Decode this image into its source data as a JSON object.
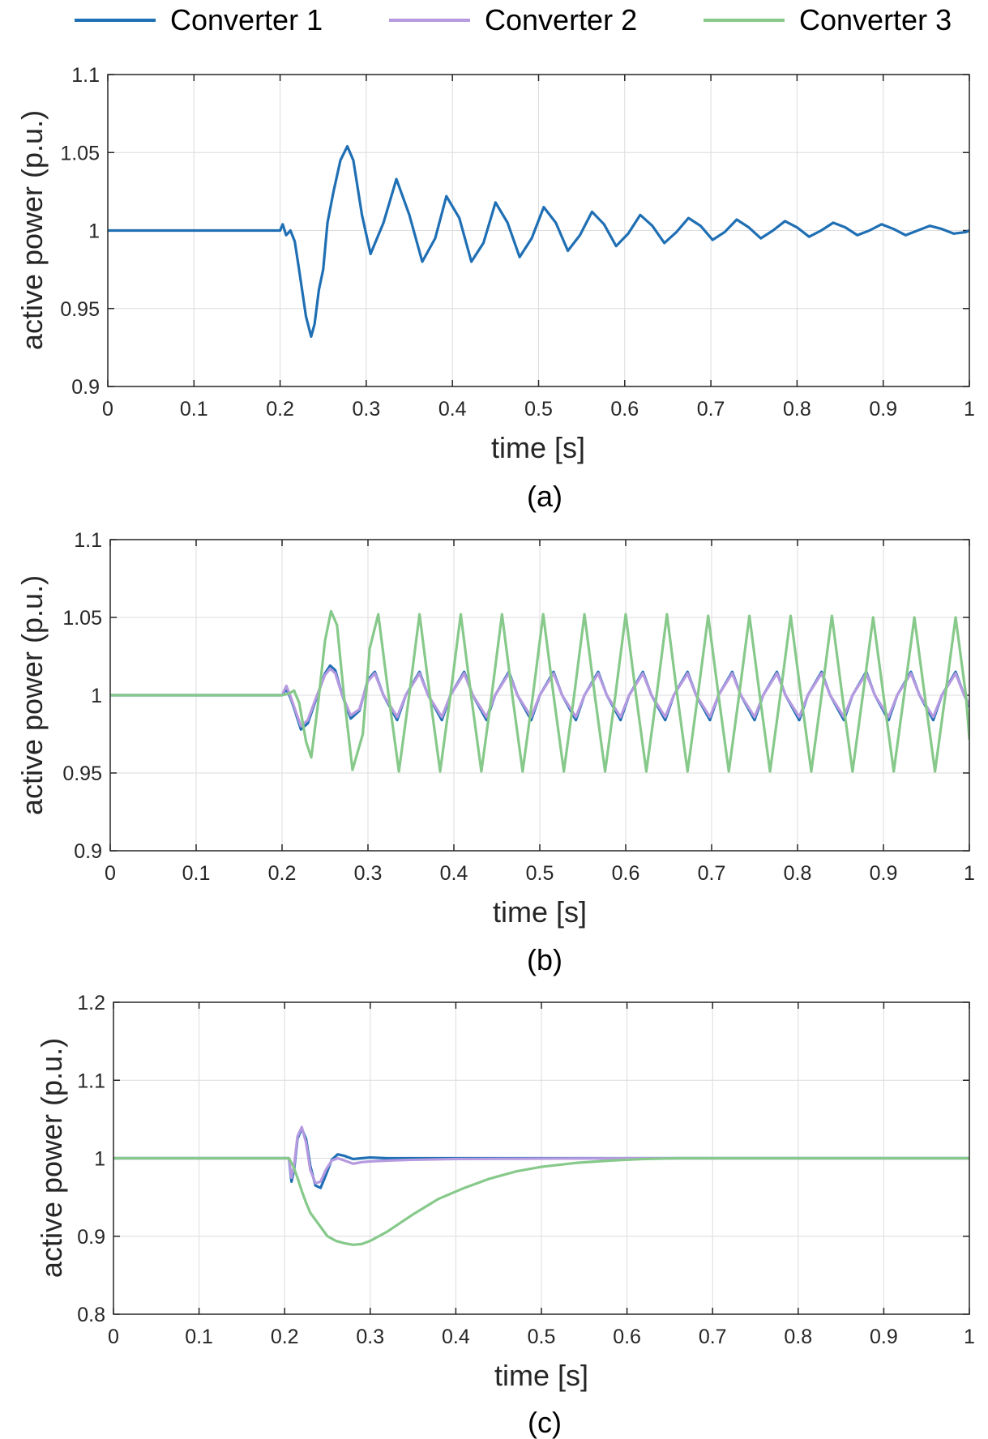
{
  "legend": {
    "placement": "top",
    "entries": [
      {
        "name": "Converter 1",
        "color": "#1f6fb4"
      },
      {
        "name": "Converter 2",
        "color": "#b69ae0"
      },
      {
        "name": "Converter 3",
        "color": "#86c98a"
      }
    ]
  },
  "chart_data": [
    {
      "type": "line",
      "caption": "(a)",
      "xlabel": "time [s]",
      "ylabel": "active power (p.u.)",
      "xlim": [
        0,
        1
      ],
      "ylim": [
        0.9,
        1.1
      ],
      "grid": true,
      "xticks": [
        "0",
        "0.1",
        "0.2",
        "0.3",
        "0.4",
        "0.5",
        "0.6",
        "0.7",
        "0.8",
        "0.9",
        "1"
      ],
      "yticks": [
        "0.9",
        "0.95",
        "1",
        "1.05",
        "1.1"
      ],
      "series": [
        {
          "name": "Converter 1",
          "x": [
            0,
            0.2,
            0.203,
            0.207,
            0.212,
            0.217,
            0.222,
            0.23,
            0.236,
            0.24,
            0.245,
            0.25,
            0.255,
            0.262,
            0.27,
            0.278,
            0.285,
            0.295,
            0.305,
            0.32,
            0.335,
            0.35,
            0.365,
            0.38,
            0.393,
            0.408,
            0.422,
            0.436,
            0.45,
            0.464,
            0.478,
            0.492,
            0.506,
            0.52,
            0.534,
            0.548,
            0.562,
            0.576,
            0.59,
            0.604,
            0.618,
            0.632,
            0.646,
            0.66,
            0.674,
            0.688,
            0.702,
            0.716,
            0.73,
            0.744,
            0.758,
            0.772,
            0.786,
            0.8,
            0.814,
            0.828,
            0.842,
            0.856,
            0.87,
            0.884,
            0.898,
            0.912,
            0.926,
            0.94,
            0.954,
            0.968,
            0.982,
            0.996,
            1
          ],
          "values": [
            1,
            1,
            1.004,
            0.997,
            1.0,
            0.993,
            0.975,
            0.945,
            0.932,
            0.94,
            0.962,
            0.975,
            1.005,
            1.025,
            1.045,
            1.054,
            1.045,
            1.01,
            0.985,
            1.005,
            1.033,
            1.01,
            0.98,
            0.995,
            1.022,
            1.008,
            0.98,
            0.992,
            1.018,
            1.005,
            0.983,
            0.995,
            1.015,
            1.005,
            0.987,
            0.997,
            1.012,
            1.004,
            0.99,
            0.998,
            1.01,
            1.003,
            0.992,
            0.999,
            1.008,
            1.003,
            0.994,
            0.999,
            1.007,
            1.002,
            0.995,
            1.0,
            1.006,
            1.002,
            0.996,
            1.0,
            1.005,
            1.002,
            0.997,
            1.0,
            1.004,
            1.001,
            0.997,
            1.0,
            1.003,
            1.001,
            0.998,
            0.999,
            1.0
          ]
        }
      ]
    },
    {
      "type": "line",
      "caption": "(b)",
      "xlabel": "time [s]",
      "ylabel": "active power (p.u.)",
      "xlim": [
        0,
        1
      ],
      "ylim": [
        0.9,
        1.1
      ],
      "grid": true,
      "xticks": [
        "0",
        "0.1",
        "0.2",
        "0.3",
        "0.4",
        "0.5",
        "0.6",
        "0.7",
        "0.8",
        "0.9",
        "1"
      ],
      "yticks": [
        "0.9",
        "0.95",
        "1",
        "1.05",
        "1.1"
      ],
      "series": [
        {
          "name": "Converter 1",
          "x": [
            0,
            0.2,
            0.205,
            0.21,
            0.215,
            0.222,
            0.23,
            0.24,
            0.25,
            0.256,
            0.262,
            0.27,
            0.28,
            0.29,
            0.3,
            0.308,
            0.318,
            0.334,
            0.344,
            0.36,
            0.37,
            0.386,
            0.396,
            0.412,
            0.422,
            0.438,
            0.448,
            0.464,
            0.474,
            0.49,
            0.5,
            0.516,
            0.526,
            0.542,
            0.552,
            0.568,
            0.578,
            0.594,
            0.604,
            0.62,
            0.63,
            0.646,
            0.656,
            0.672,
            0.682,
            0.698,
            0.708,
            0.724,
            0.734,
            0.75,
            0.76,
            0.776,
            0.786,
            0.802,
            0.812,
            0.828,
            0.838,
            0.854,
            0.864,
            0.88,
            0.89,
            0.906,
            0.916,
            0.932,
            0.942,
            0.958,
            0.968,
            0.984,
            0.994,
            1
          ],
          "values": [
            1,
            1,
            1.004,
            0.998,
            0.99,
            0.978,
            0.982,
            0.998,
            1.014,
            1.019,
            1.016,
            1.0,
            0.985,
            0.99,
            1.01,
            1.015,
            1.0,
            0.984,
            1.0,
            1.015,
            1.0,
            0.984,
            1.0,
            1.015,
            1.0,
            0.984,
            1.0,
            1.015,
            1.0,
            0.984,
            1.0,
            1.015,
            1.0,
            0.984,
            1.0,
            1.015,
            1.0,
            0.984,
            1.0,
            1.015,
            1.0,
            0.984,
            1.0,
            1.015,
            1.0,
            0.984,
            1.0,
            1.015,
            1.0,
            0.984,
            1.0,
            1.015,
            1.0,
            0.984,
            1.0,
            1.015,
            1.0,
            0.984,
            1.0,
            1.015,
            1.0,
            0.984,
            1.0,
            1.015,
            1.0,
            0.984,
            1.0,
            1.015,
            1.0,
            0.993
          ]
        },
        {
          "name": "Converter 2",
          "x": [
            0,
            0.2,
            0.205,
            0.21,
            0.215,
            0.222,
            0.23,
            0.24,
            0.25,
            0.256,
            0.262,
            0.27,
            0.28,
            0.29,
            0.3,
            0.308,
            0.318,
            0.334,
            0.344,
            0.36,
            0.37,
            0.386,
            0.396,
            0.412,
            0.422,
            0.438,
            0.448,
            0.464,
            0.474,
            0.49,
            0.5,
            0.516,
            0.526,
            0.542,
            0.552,
            0.568,
            0.578,
            0.594,
            0.604,
            0.62,
            0.63,
            0.646,
            0.656,
            0.672,
            0.682,
            0.698,
            0.708,
            0.724,
            0.734,
            0.75,
            0.76,
            0.776,
            0.786,
            0.802,
            0.812,
            0.828,
            0.838,
            0.854,
            0.864,
            0.88,
            0.89,
            0.906,
            0.916,
            0.932,
            0.942,
            0.958,
            0.968,
            0.984,
            0.994,
            1
          ],
          "values": [
            1,
            1,
            1.006,
            0.999,
            0.991,
            0.98,
            0.984,
            0.999,
            1.013,
            1.017,
            1.014,
            1.0,
            0.987,
            0.991,
            1.009,
            1.014,
            1.0,
            0.986,
            1.0,
            1.014,
            1.0,
            0.986,
            1.0,
            1.014,
            1.0,
            0.986,
            1.0,
            1.014,
            1.0,
            0.986,
            1.0,
            1.014,
            1.0,
            0.986,
            1.0,
            1.014,
            1.0,
            0.986,
            1.0,
            1.014,
            1.0,
            0.986,
            1.0,
            1.014,
            1.0,
            0.986,
            1.0,
            1.014,
            1.0,
            0.986,
            1.0,
            1.014,
            1.0,
            0.986,
            1.0,
            1.014,
            1.0,
            0.986,
            1.0,
            1.014,
            1.0,
            0.986,
            1.0,
            1.014,
            1.0,
            0.986,
            1.0,
            1.014,
            1.0,
            0.994
          ]
        },
        {
          "name": "Converter 3",
          "x": [
            0,
            0.2,
            0.208,
            0.214,
            0.22,
            0.228,
            0.234,
            0.242,
            0.25,
            0.257,
            0.264,
            0.272,
            0.282,
            0.294,
            0.302,
            0.312,
            0.324,
            0.336,
            0.348,
            0.36,
            0.372,
            0.384,
            0.396,
            0.408,
            0.42,
            0.432,
            0.444,
            0.456,
            0.468,
            0.48,
            0.492,
            0.504,
            0.516,
            0.528,
            0.54,
            0.552,
            0.564,
            0.576,
            0.588,
            0.6,
            0.612,
            0.624,
            0.636,
            0.648,
            0.66,
            0.672,
            0.684,
            0.696,
            0.708,
            0.72,
            0.732,
            0.744,
            0.756,
            0.768,
            0.78,
            0.792,
            0.804,
            0.816,
            0.828,
            0.84,
            0.852,
            0.864,
            0.876,
            0.888,
            0.9,
            0.912,
            0.924,
            0.936,
            0.948,
            0.96,
            0.972,
            0.984,
            0.996,
            1
          ],
          "values": [
            1,
            1,
            1.001,
            1.003,
            0.995,
            0.97,
            0.96,
            0.995,
            1.035,
            1.054,
            1.045,
            1.0,
            0.952,
            0.975,
            1.03,
            1.052,
            1.0,
            0.951,
            1.0,
            1.052,
            1.0,
            0.951,
            1.0,
            1.052,
            1.0,
            0.951,
            1.0,
            1.052,
            1.0,
            0.951,
            1.0,
            1.052,
            1.0,
            0.951,
            1.0,
            1.052,
            1.0,
            0.951,
            1.0,
            1.052,
            1.0,
            0.951,
            1.0,
            1.052,
            1.0,
            0.951,
            1.0,
            1.051,
            1.0,
            0.951,
            1.0,
            1.051,
            1.0,
            0.951,
            1.0,
            1.051,
            1.0,
            0.951,
            1.0,
            1.051,
            1.0,
            0.951,
            1.0,
            1.05,
            1.0,
            0.951,
            1.0,
            1.05,
            1.0,
            0.951,
            1.0,
            1.05,
            1.0,
            0.972
          ]
        }
      ]
    },
    {
      "type": "line",
      "caption": "(c)",
      "xlabel": "time [s]",
      "ylabel": "active power (p.u.)",
      "xlim": [
        0,
        1
      ],
      "ylim": [
        0.8,
        1.2
      ],
      "grid": true,
      "xticks": [
        "0",
        "0.1",
        "0.2",
        "0.3",
        "0.4",
        "0.5",
        "0.6",
        "0.7",
        "0.8",
        "0.9",
        "1"
      ],
      "yticks": [
        "0.8",
        "0.9",
        "1",
        "1.1",
        "1.2"
      ],
      "series": [
        {
          "name": "Converter 1",
          "x": [
            0,
            0.205,
            0.208,
            0.211,
            0.215,
            0.22,
            0.225,
            0.23,
            0.236,
            0.242,
            0.248,
            0.255,
            0.262,
            0.27,
            0.28,
            0.29,
            0.3,
            0.32,
            0.35,
            0.4,
            1
          ],
          "values": [
            1,
            1,
            0.97,
            0.985,
            1.025,
            1.038,
            1.025,
            0.99,
            0.965,
            0.962,
            0.978,
            0.998,
            1.005,
            1.003,
            0.999,
            1.0,
            1.001,
            1.0,
            1.0,
            1.0,
            1.0
          ]
        },
        {
          "name": "Converter 2",
          "x": [
            0,
            0.205,
            0.208,
            0.211,
            0.215,
            0.22,
            0.225,
            0.23,
            0.236,
            0.242,
            0.248,
            0.255,
            0.262,
            0.27,
            0.28,
            0.29,
            0.3,
            0.32,
            0.35,
            0.4,
            0.5,
            0.6,
            1
          ],
          "values": [
            1,
            1,
            0.975,
            0.99,
            1.028,
            1.04,
            1.02,
            0.985,
            0.968,
            0.97,
            0.985,
            0.997,
            1.0,
            0.997,
            0.993,
            0.995,
            0.996,
            0.997,
            0.998,
            0.999,
            0.9995,
            1.0,
            1.0
          ]
        },
        {
          "name": "Converter 3",
          "x": [
            0,
            0.205,
            0.21,
            0.215,
            0.22,
            0.225,
            0.23,
            0.24,
            0.25,
            0.26,
            0.27,
            0.28,
            0.29,
            0.3,
            0.32,
            0.35,
            0.38,
            0.41,
            0.44,
            0.47,
            0.5,
            0.54,
            0.58,
            0.62,
            0.66,
            0.7,
            1
          ],
          "values": [
            1,
            1,
            0.99,
            0.975,
            0.958,
            0.943,
            0.93,
            0.915,
            0.9,
            0.894,
            0.891,
            0.889,
            0.89,
            0.894,
            0.906,
            0.928,
            0.948,
            0.962,
            0.974,
            0.983,
            0.989,
            0.994,
            0.997,
            0.999,
            1.0,
            1.0,
            1.0
          ]
        }
      ]
    }
  ]
}
